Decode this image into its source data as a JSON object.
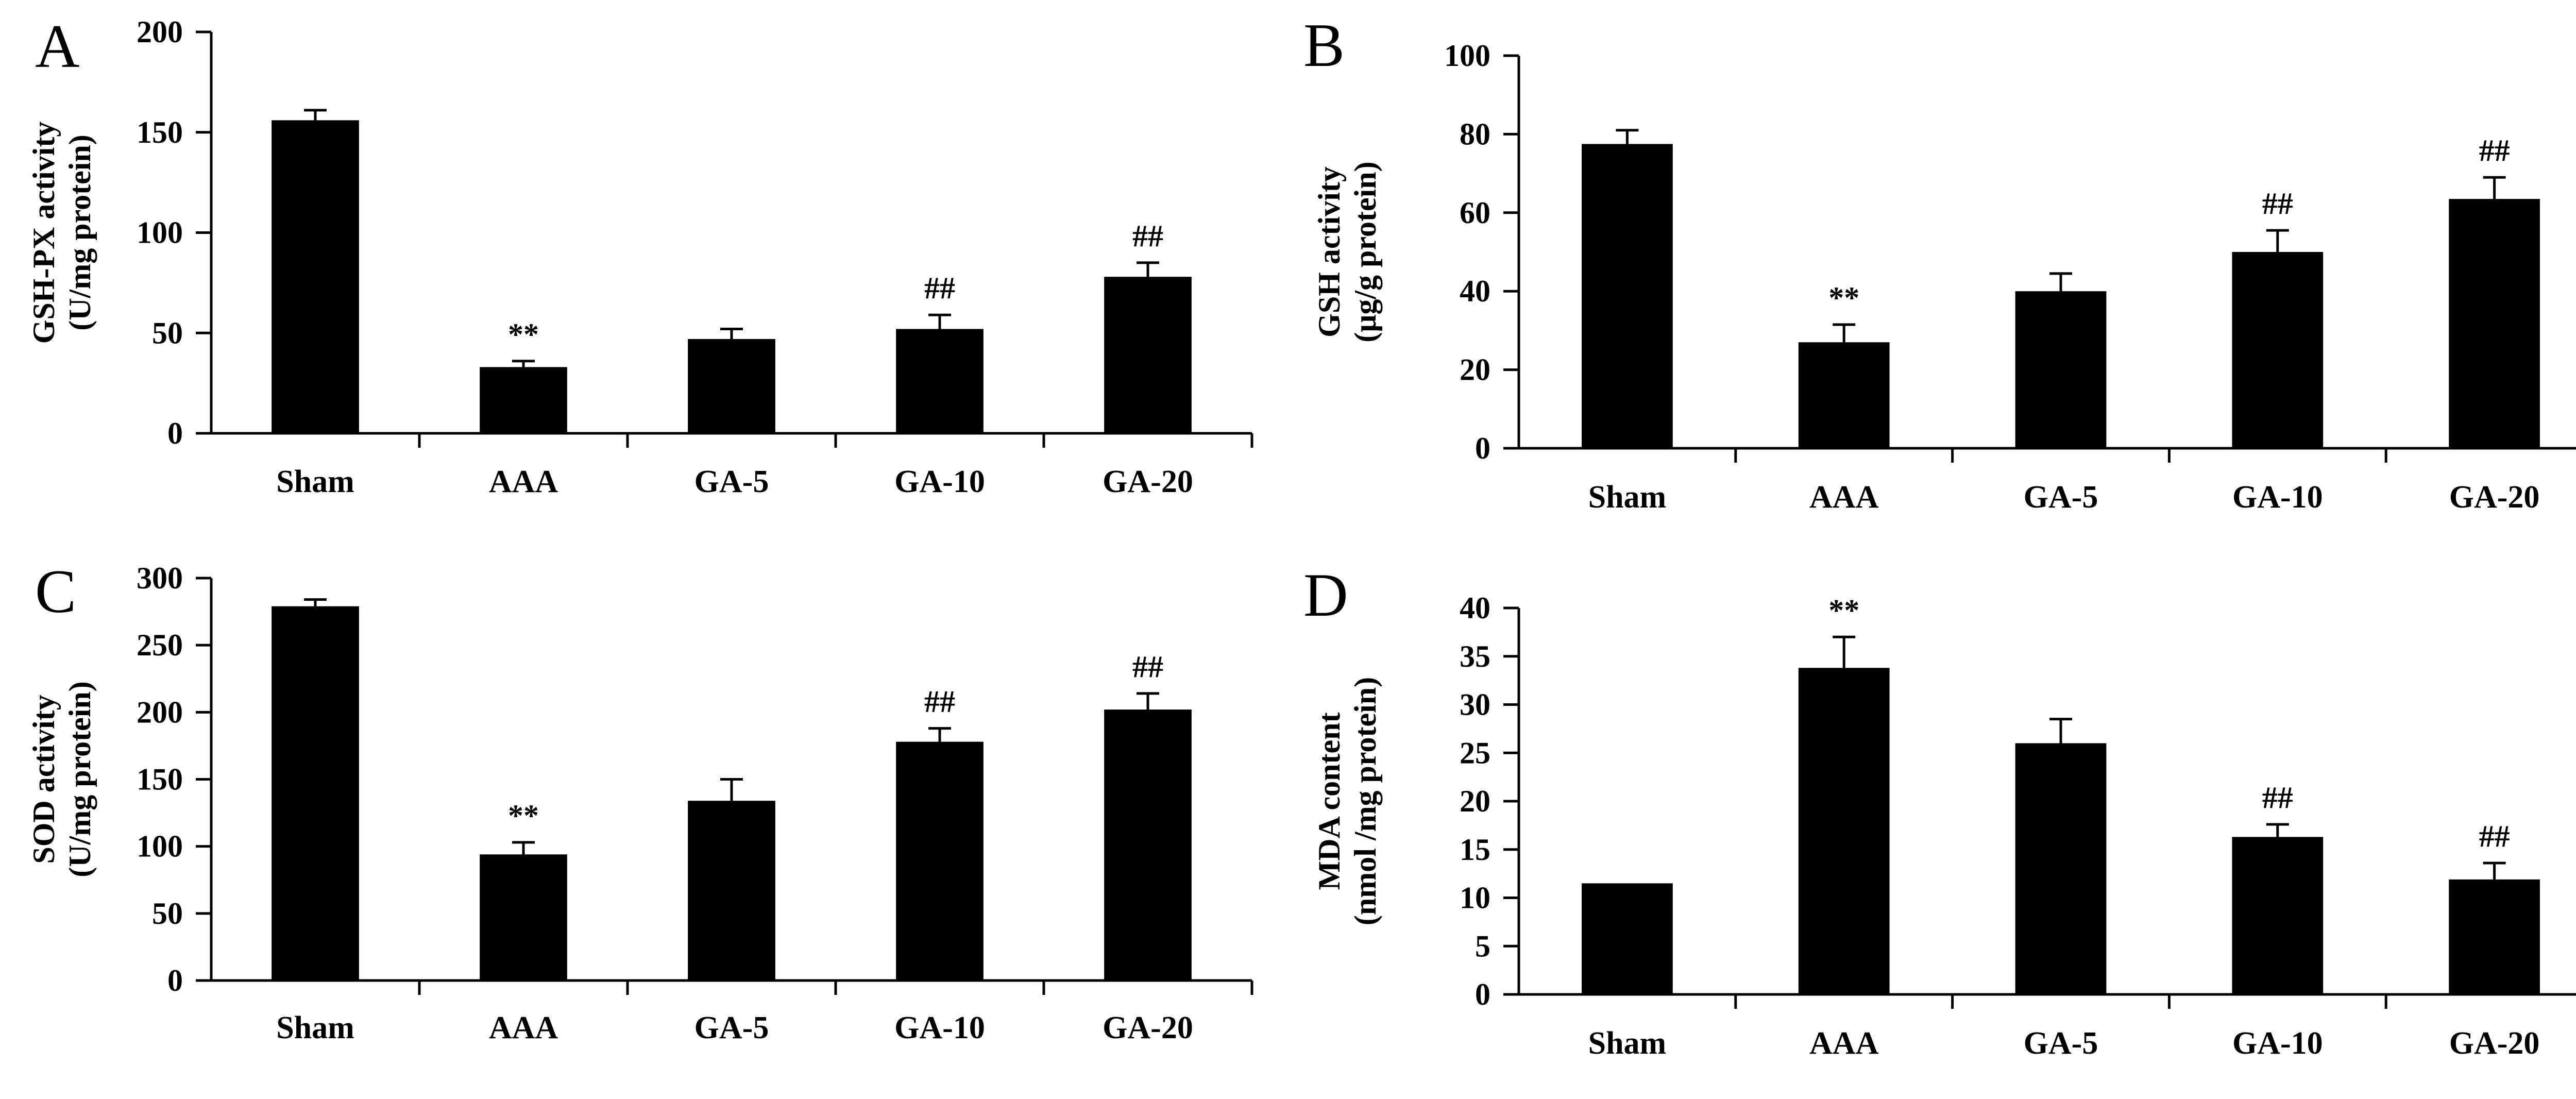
{
  "figure": {
    "panels": [
      "A",
      "B",
      "C",
      "D"
    ]
  },
  "chart_data": [
    {
      "type": "bar",
      "panel": "A",
      "categories": [
        "Sham",
        "AAA",
        "GA-5",
        "GA-10",
        "GA-20"
      ],
      "values": [
        156,
        33,
        47,
        52,
        78
      ],
      "errors": [
        5,
        3,
        5,
        7,
        7
      ],
      "annotations": [
        "",
        "**",
        "",
        "##",
        "##"
      ],
      "ylabel": [
        "GSH-PX activity",
        "(U/mg protein)"
      ],
      "ylim": [
        0,
        200
      ],
      "yticks": [
        0,
        50,
        100,
        150,
        200
      ],
      "color": "#000000"
    },
    {
      "type": "bar",
      "panel": "B",
      "categories": [
        "Sham",
        "AAA",
        "GA-5",
        "GA-10",
        "GA-20"
      ],
      "values": [
        77.5,
        27,
        40,
        50,
        63.5
      ],
      "errors": [
        3.5,
        4.5,
        4.5,
        5.5,
        5.5
      ],
      "annotations": [
        "",
        "**",
        "",
        "##",
        "##"
      ],
      "ylabel": [
        "GSH activity",
        "(μg/g protein)"
      ],
      "ylim": [
        0,
        100
      ],
      "yticks": [
        0,
        20,
        40,
        60,
        80,
        100
      ],
      "color": "#000000"
    },
    {
      "type": "bar",
      "panel": "C",
      "categories": [
        "Sham",
        "AAA",
        "GA-5",
        "GA-10",
        "GA-20"
      ],
      "values": [
        279,
        94,
        134,
        178,
        202
      ],
      "errors": [
        5,
        9,
        16,
        10,
        12
      ],
      "annotations": [
        "",
        "**",
        "",
        "##",
        "##"
      ],
      "ylabel": [
        "SOD activity",
        "(U/mg protein)"
      ],
      "ylim": [
        0,
        300
      ],
      "yticks": [
        0,
        50,
        100,
        150,
        200,
        250,
        300
      ],
      "color": "#000000"
    },
    {
      "type": "bar",
      "panel": "D",
      "categories": [
        "Sham",
        "AAA",
        "GA-5",
        "GA-10",
        "GA-20"
      ],
      "values": [
        11.5,
        33.8,
        26,
        16.3,
        11.9
      ],
      "errors": [
        0,
        3.2,
        2.5,
        1.3,
        1.7
      ],
      "annotations": [
        "",
        "**",
        "",
        "##",
        "##"
      ],
      "ylabel": [
        "MDA content",
        "(nmol /mg protein)"
      ],
      "ylim": [
        0,
        40
      ],
      "yticks": [
        0,
        5,
        10,
        15,
        20,
        25,
        30,
        35,
        40
      ],
      "color": "#000000"
    }
  ]
}
